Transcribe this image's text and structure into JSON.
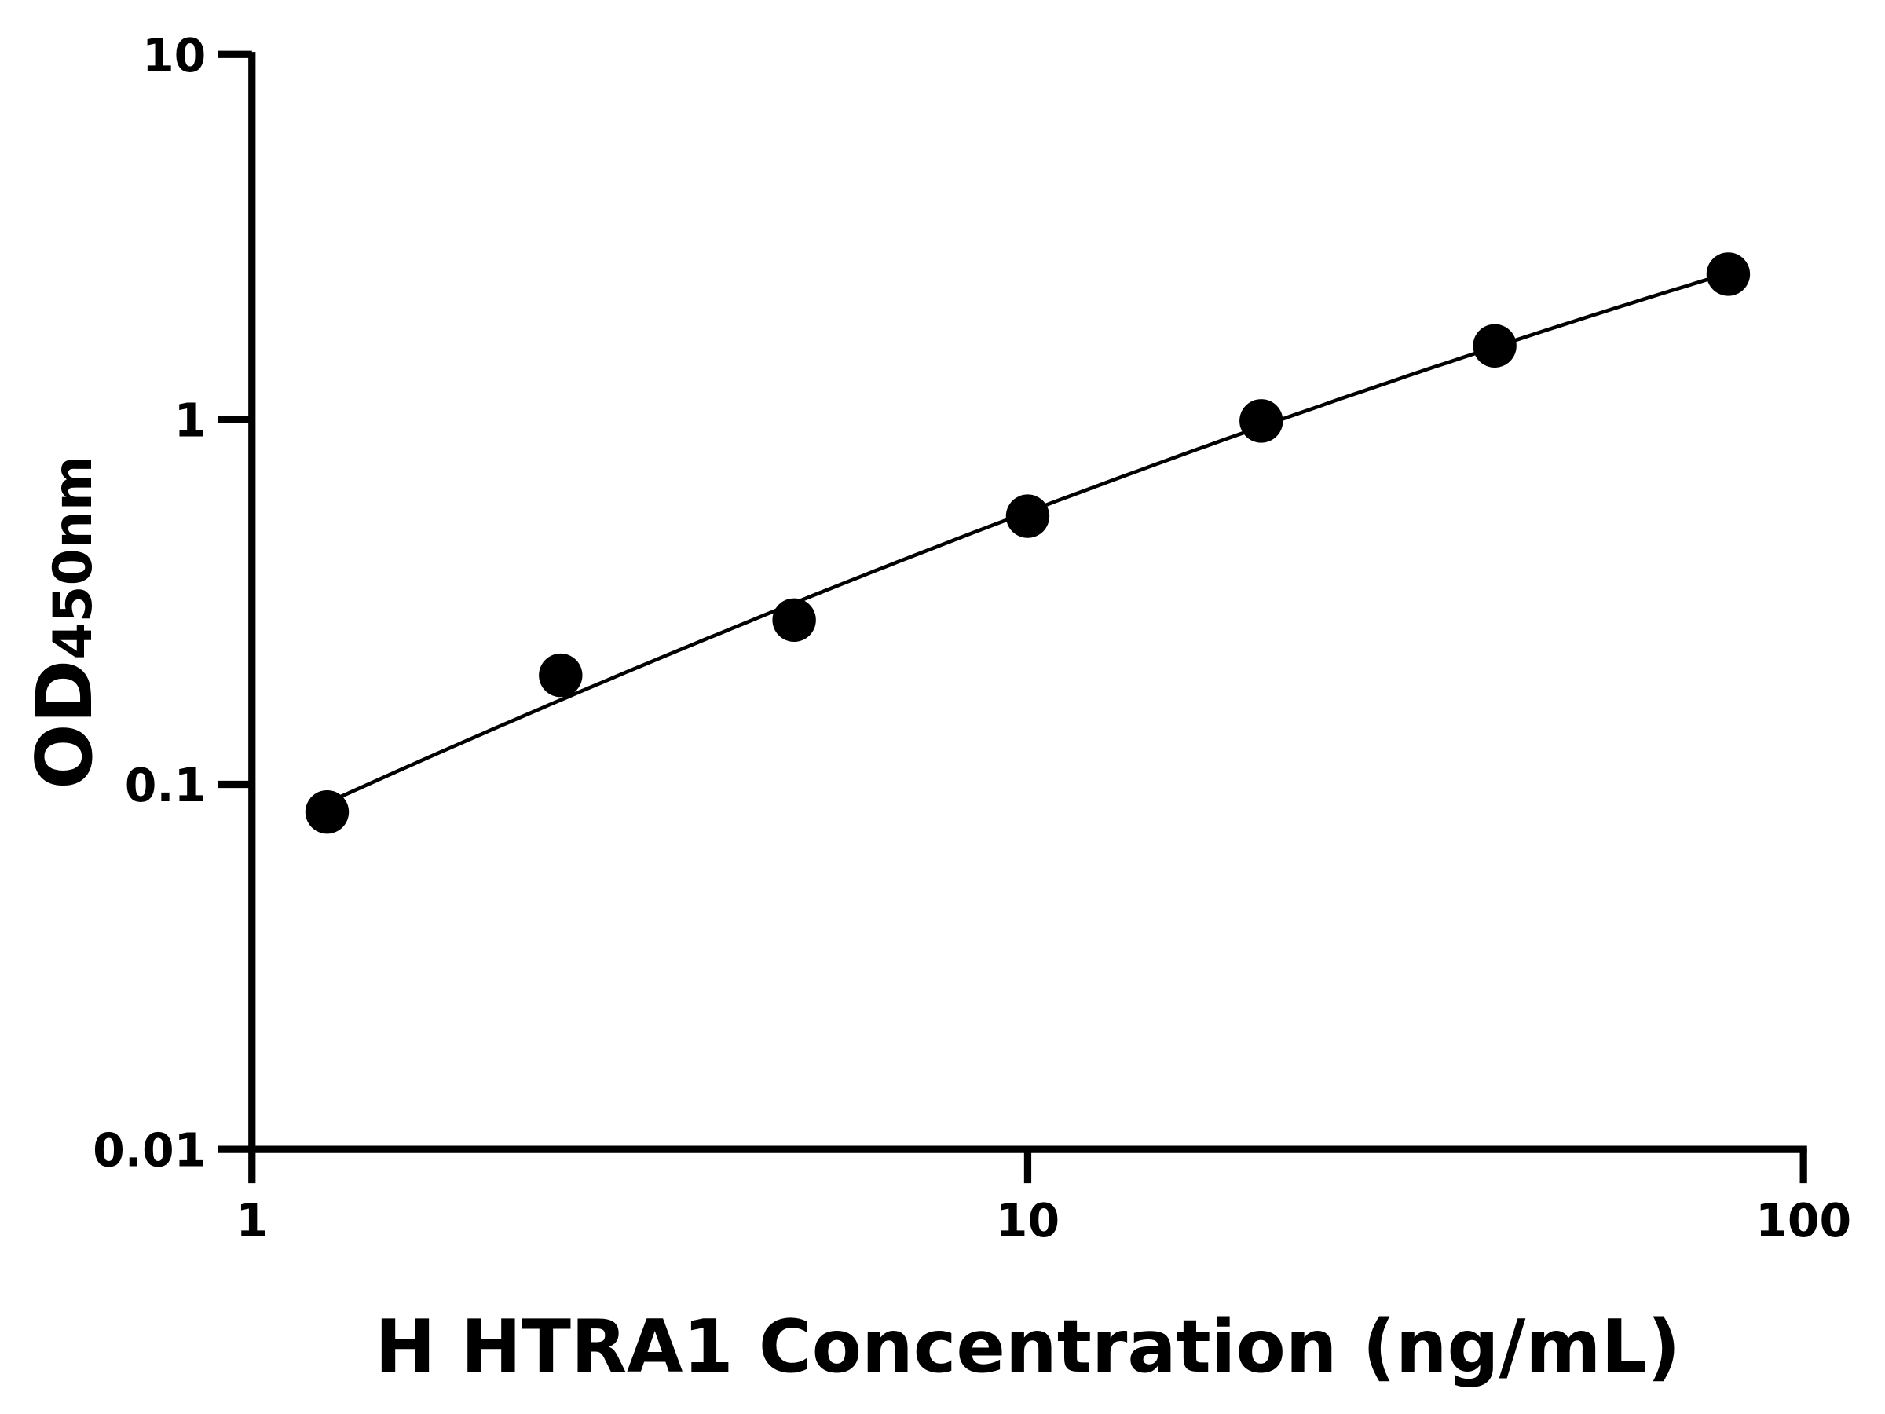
{
  "chart_data": {
    "type": "scatter",
    "title": "",
    "xlabel": "H HTRA1 Concentration (ng/mL)",
    "ylabel_main": "OD",
    "ylabel_sub": "450nm",
    "x_scale": "log",
    "y_scale": "log",
    "xlim": [
      1,
      100
    ],
    "ylim": [
      0.01,
      10
    ],
    "x_ticks": [
      "1",
      "10",
      "100"
    ],
    "y_ticks": [
      "0.01",
      "0.1",
      "1",
      "10"
    ],
    "grid": false,
    "series": [
      {
        "x": [
          1.25,
          2.5,
          5,
          10,
          20,
          40,
          80
        ],
        "y": [
          0.084,
          0.199,
          0.282,
          0.543,
          0.99,
          1.59,
          2.5
        ],
        "marker": "circle",
        "fit_curve": true
      }
    ],
    "colors": {
      "marker": "#000000",
      "line": "#000000",
      "axis": "#000000"
    }
  }
}
